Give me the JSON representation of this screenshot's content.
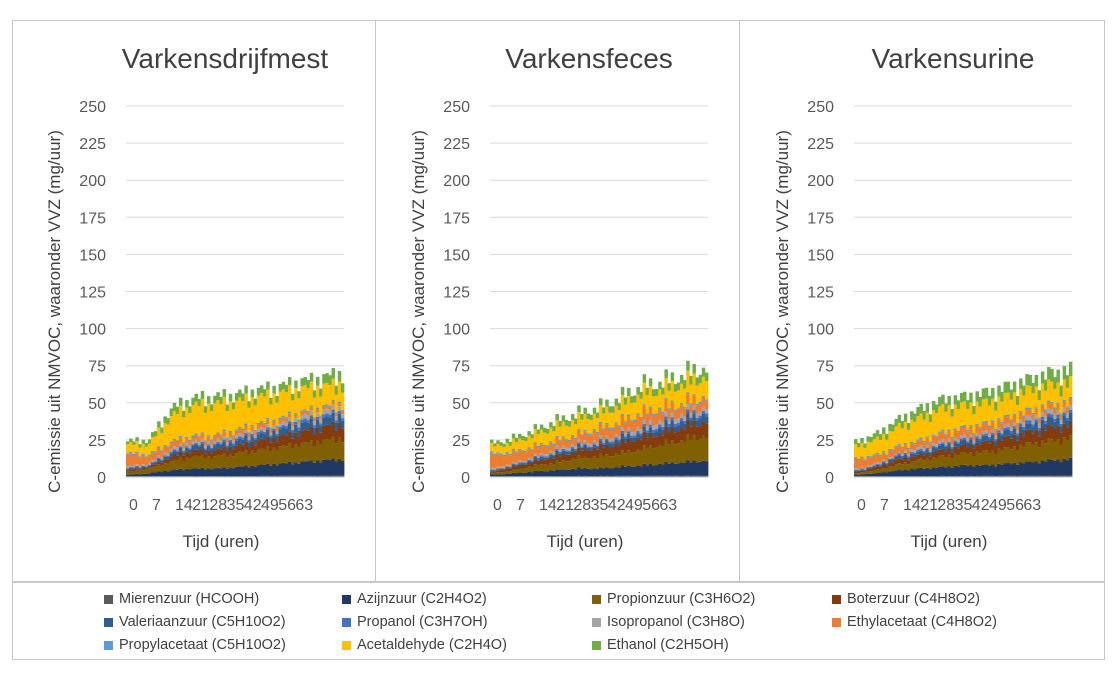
{
  "chart_data": [
    {
      "type": "area",
      "title": "Varkensdrijfmest",
      "xlabel": "Tijd (uren)",
      "ylabel": "C-emissie uit NMVOC, waaronder VVZ (mg/uur)",
      "ylim": [
        0,
        250
      ],
      "yticks": [
        "0",
        "25",
        "50",
        "75",
        "100",
        "125",
        "150",
        "175",
        "200",
        "225",
        "250"
      ],
      "xtick_labels": [
        "0",
        "7",
        "14",
        "21",
        "28",
        "35",
        "42",
        "49",
        "56",
        "63"
      ],
      "xlim": [
        0,
        70
      ],
      "grid": true,
      "series": [
        {
          "name": "Mierenzuur (HCOOH)",
          "values": [
            0.5,
            0.5,
            0.5,
            0.6,
            0.6,
            0.6,
            0.7,
            0.8,
            0.9,
            1.0,
            1.0
          ]
        },
        {
          "name": "Azijnzuur (C2H4O2)",
          "values": [
            1,
            2,
            4,
            5,
            5,
            6,
            7,
            8,
            9,
            10,
            11
          ]
        },
        {
          "name": "Propionzuur (C3H6O2)",
          "values": [
            2,
            3,
            6,
            8,
            8,
            9,
            10,
            11,
            12,
            13,
            14
          ]
        },
        {
          "name": "Boterzuur (C4H8O2)",
          "values": [
            1,
            1,
            3,
            4,
            4,
            5,
            6,
            7,
            8,
            9,
            10
          ]
        },
        {
          "name": "Valeriaanzuur (C5H10O2)",
          "values": [
            1,
            1,
            2,
            3,
            3,
            3,
            4,
            4,
            5,
            5,
            6
          ]
        },
        {
          "name": "Propanol (C3H7OH)",
          "values": [
            0.5,
            0.5,
            1,
            1,
            1,
            1.5,
            1.5,
            1.5,
            2,
            2,
            2
          ]
        },
        {
          "name": "Isopropanol (C3H8O)",
          "values": [
            1,
            1,
            2,
            2,
            2,
            2,
            2,
            2,
            3,
            3,
            3
          ]
        },
        {
          "name": "Ethylacetaat (C4H8O2)",
          "values": [
            8,
            5,
            4,
            3,
            3,
            3,
            3,
            3,
            2,
            2,
            2
          ]
        },
        {
          "name": "Propylacetaat (C5H10O2)",
          "values": [
            1,
            1,
            1,
            1,
            1,
            1,
            1,
            1,
            1,
            1,
            1
          ]
        },
        {
          "name": "Acetaldehyde (C2H4O)",
          "values": [
            6,
            7,
            17,
            20,
            21,
            19,
            18,
            17,
            16,
            14,
            13
          ]
        },
        {
          "name": "Ethanol (C2H5OH)",
          "values": [
            2,
            3,
            5,
            5,
            5,
            5,
            5,
            5,
            5,
            6,
            7
          ]
        }
      ]
    },
    {
      "type": "area",
      "title": "Varkensfeces",
      "xlabel": "Tijd (uren)",
      "ylabel": "C-emissie uit NMVOC, waaronder VVZ (mg/uur)",
      "ylim": [
        0,
        250
      ],
      "yticks": [
        "0",
        "25",
        "50",
        "75",
        "100",
        "125",
        "150",
        "175",
        "200",
        "225",
        "250"
      ],
      "xtick_labels": [
        "0",
        "7",
        "14",
        "21",
        "28",
        "35",
        "42",
        "49",
        "56",
        "63"
      ],
      "xlim": [
        0,
        70
      ],
      "grid": true,
      "series": [
        {
          "name": "Mierenzuur (HCOOH)",
          "values": [
            0.5,
            0.5,
            0.6,
            0.6,
            0.7,
            0.7,
            0.8,
            0.8,
            0.9,
            1.0,
            1.0
          ]
        },
        {
          "name": "Azijnzuur (C2H4O2)",
          "values": [
            1,
            2,
            3,
            4,
            5,
            5,
            6,
            7,
            8,
            9,
            10
          ]
        },
        {
          "name": "Propionzuur (C3H6O2)",
          "values": [
            1,
            2,
            4,
            5,
            7,
            8,
            9,
            11,
            13,
            15,
            17
          ]
        },
        {
          "name": "Boterzuur (C4H8O2)",
          "values": [
            1,
            2,
            3,
            4,
            5,
            6,
            7,
            8,
            8,
            9,
            10
          ]
        },
        {
          "name": "Valeriaanzuur (C5H10O2)",
          "values": [
            0.5,
            1,
            1,
            2,
            2,
            2,
            3,
            3,
            4,
            4,
            5
          ]
        },
        {
          "name": "Propanol (C3H7OH)",
          "values": [
            0.5,
            0.5,
            1,
            1,
            1,
            1,
            1.5,
            1.5,
            2,
            2,
            2
          ]
        },
        {
          "name": "Isopropanol (C3H8O)",
          "values": [
            1,
            1,
            1,
            2,
            2,
            2,
            2,
            3,
            3,
            3,
            3
          ]
        },
        {
          "name": "Ethylacetaat (C4H8O2)",
          "values": [
            9,
            7,
            6,
            5,
            5,
            7,
            7,
            8,
            7,
            6,
            6
          ]
        },
        {
          "name": "Propylacetaat (C5H10O2)",
          "values": [
            1,
            1,
            1,
            1,
            1,
            1,
            1,
            1,
            1,
            1,
            1
          ]
        },
        {
          "name": "Acetaldehyde (C2H4O)",
          "values": [
            5,
            6,
            8,
            9,
            10,
            10,
            11,
            13,
            12,
            13,
            13
          ]
        },
        {
          "name": "Ethanol (C2H5OH)",
          "values": [
            2,
            3,
            3,
            4,
            4,
            4,
            5,
            5,
            5,
            6,
            6
          ]
        }
      ]
    },
    {
      "type": "area",
      "title": "Varkensurine",
      "xlabel": "Tijd (uren)",
      "ylabel": "C-emissie uit NMVOC, waaronder VVZ (mg/uur)",
      "ylim": [
        0,
        250
      ],
      "yticks": [
        "0",
        "25",
        "50",
        "75",
        "100",
        "125",
        "150",
        "175",
        "200",
        "225",
        "250"
      ],
      "xtick_labels": [
        "0",
        "7",
        "14",
        "21",
        "28",
        "35",
        "42",
        "49",
        "56",
        "63"
      ],
      "xlim": [
        0,
        70
      ],
      "grid": true,
      "series": [
        {
          "name": "Mierenzuur (HCOOH)",
          "values": [
            0.5,
            0.5,
            0.6,
            0.6,
            0.7,
            0.7,
            0.8,
            0.8,
            0.9,
            1.0,
            1.0
          ]
        },
        {
          "name": "Azijnzuur (C2H4O2)",
          "values": [
            1,
            2,
            4,
            5,
            6,
            7,
            7,
            8,
            9,
            10,
            11
          ]
        },
        {
          "name": "Propionzuur (C3H6O2)",
          "values": [
            1,
            2,
            4,
            6,
            7,
            8,
            9,
            10,
            12,
            13,
            14
          ]
        },
        {
          "name": "Boterzuur (C4H8O2)",
          "values": [
            1,
            2,
            3,
            3,
            4,
            5,
            6,
            7,
            8,
            9,
            9
          ]
        },
        {
          "name": "Valeriaanzuur (C5H10O2)",
          "values": [
            0.5,
            1,
            2,
            2,
            3,
            3,
            3,
            4,
            4,
            5,
            5
          ]
        },
        {
          "name": "Propanol (C3H7OH)",
          "values": [
            0.5,
            0.5,
            1,
            1,
            1,
            1,
            1.5,
            1.5,
            2,
            2,
            2
          ]
        },
        {
          "name": "Isopropanol (C3H8O)",
          "values": [
            1,
            1,
            1,
            2,
            2,
            2,
            2,
            2,
            3,
            3,
            3
          ]
        },
        {
          "name": "Ethylacetaat (C4H8O2)",
          "values": [
            6,
            5,
            4,
            4,
            5,
            5,
            5,
            5,
            4,
            4,
            4
          ]
        },
        {
          "name": "Propylacetaat (C5H10O2)",
          "values": [
            1,
            1,
            1,
            1,
            1,
            1,
            1,
            1,
            1,
            1,
            1
          ]
        },
        {
          "name": "Acetaldehyde (C2H4O)",
          "values": [
            8,
            10,
            13,
            15,
            16,
            15,
            14,
            14,
            14,
            13,
            13
          ]
        },
        {
          "name": "Ethanol (C2H5OH)",
          "values": [
            3,
            4,
            5,
            6,
            6,
            6,
            7,
            7,
            7,
            8,
            9
          ]
        }
      ]
    }
  ],
  "legend": {
    "items": [
      {
        "label": "Mierenzuur (HCOOH)",
        "color": "#595959"
      },
      {
        "label": "Azijnzuur (C2H4O2)",
        "color": "#203864"
      },
      {
        "label": "Propionzuur (C3H6O2)",
        "color": "#806000"
      },
      {
        "label": "Boterzuur (C4H8O2)",
        "color": "#843c0c"
      },
      {
        "label": "Valeriaanzuur (C5H10O2)",
        "color": "#2e5f91"
      },
      {
        "label": "Propanol (C3H7OH)",
        "color": "#4472c4"
      },
      {
        "label": "Isopropanol (C3H8O)",
        "color": "#a5a5a5"
      },
      {
        "label": "Ethylacetaat (C4H8O2)",
        "color": "#ed7d31"
      },
      {
        "label": "Propylacetaat (C5H10O2)",
        "color": "#5b9bd5"
      },
      {
        "label": "Acetaldehyde (C2H4O)",
        "color": "#ffc000"
      },
      {
        "label": "Ethanol (C2H5OH)",
        "color": "#70ad47"
      }
    ]
  }
}
